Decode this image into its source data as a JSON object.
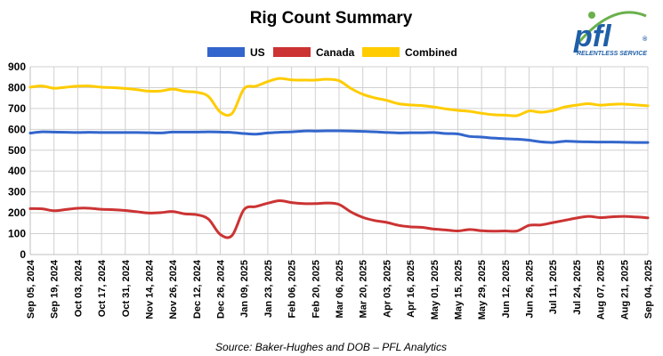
{
  "logo": {
    "text": "pfl",
    "tagline": "RELENTLESS SERVICE",
    "tm": "®"
  },
  "source": "Source: Baker-Hughes and DOB – PFL Analytics",
  "chart_data": {
    "type": "line",
    "title": "Rig Count Summary",
    "xlabel": "",
    "ylabel": "",
    "ylim": [
      0,
      900
    ],
    "yticks": [
      0,
      100,
      200,
      300,
      400,
      500,
      600,
      700,
      800,
      900
    ],
    "grid": true,
    "legend_position": "top-center",
    "x": [
      "Sep 05, 2024",
      "Sep 12, 2024",
      "Sep 19, 2024",
      "Sep 26, 2024",
      "Oct 03, 2024",
      "Oct 10, 2024",
      "Oct 17, 2024",
      "Oct 24, 2024",
      "Oct 31, 2024",
      "Nov 07, 2024",
      "Nov 14, 2024",
      "Nov 21, 2024",
      "Nov 26, 2024",
      "Dec 05, 2024",
      "Dec 12, 2024",
      "Dec 19, 2024",
      "Dec 26, 2024",
      "Jan 02, 2025",
      "Jan 09, 2025",
      "Jan 16, 2025",
      "Jan 23, 2025",
      "Jan 30, 2025",
      "Feb 06, 2025",
      "Feb 13, 2025",
      "Feb 20, 2025",
      "Feb 27, 2025",
      "Mar 06, 2025",
      "Mar 13, 2025",
      "Mar 20, 2025",
      "Mar 27, 2025",
      "Apr 03, 2025",
      "Apr 10, 2025",
      "Apr 16, 2025",
      "Apr 24, 2025",
      "May 01, 2025",
      "May 08, 2025",
      "May 15, 2025",
      "May 22, 2025",
      "May 29, 2025",
      "Jun 05, 2025",
      "Jun 12, 2025",
      "Jun 19, 2025",
      "Jun 26, 2025",
      "Jul 03, 2025",
      "Jul 11, 2025",
      "Jul 17, 2025",
      "Jul 24, 2025",
      "Jul 31, 2025",
      "Aug 07, 2025",
      "Aug 14, 2025",
      "Aug 21, 2025",
      "Aug 28, 2025",
      "Sep 04, 2025"
    ],
    "xtick_labels": [
      "Sep 05, 2024",
      "Sep 19, 2024",
      "Oct 03, 2024",
      "Oct 17, 2024",
      "Oct 31, 2024",
      "Nov 14, 2024",
      "Nov 26, 2024",
      "Dec 12, 2024",
      "Dec 26, 2024",
      "Jan 09, 2025",
      "Jan 23, 2025",
      "Feb 06, 2025",
      "Feb 20, 2025",
      "Mar 06, 2025",
      "Mar 20, 2025",
      "Apr 03, 2025",
      "Apr 16, 2025",
      "May 01, 2025",
      "May 15, 2025",
      "May 29, 2025",
      "Jun 12, 2025",
      "Jun 26, 2025",
      "Jul 11, 2025",
      "Jul 24, 2025",
      "Aug 07, 2025",
      "Aug 21, 2025",
      "Sep 04, 2025"
    ],
    "series": [
      {
        "name": "US",
        "color": "#3366cc",
        "values": [
          582,
          588,
          587,
          586,
          585,
          586,
          585,
          585,
          585,
          585,
          584,
          583,
          587,
          587,
          587,
          588,
          587,
          585,
          580,
          577,
          583,
          586,
          588,
          592,
          592,
          593,
          593,
          592,
          590,
          588,
          585,
          583,
          584,
          584,
          585,
          580,
          578,
          566,
          563,
          558,
          555,
          553,
          548,
          540,
          537,
          543,
          541,
          540,
          539,
          539,
          538,
          537,
          537
        ]
      },
      {
        "name": "Canada",
        "color": "#cc3333",
        "values": [
          220,
          219,
          210,
          216,
          222,
          222,
          217,
          215,
          211,
          205,
          199,
          201,
          206,
          195,
          191,
          170,
          96,
          92,
          215,
          230,
          246,
          258,
          249,
          244,
          244,
          247,
          240,
          204,
          178,
          163,
          154,
          140,
          133,
          130,
          122,
          118,
          113,
          120,
          114,
          112,
          113,
          113,
          140,
          142,
          153,
          164,
          175,
          183,
          177,
          181,
          183,
          180,
          176
        ]
      },
      {
        "name": "Combined",
        "color": "#ffcc00",
        "values": [
          802,
          808,
          797,
          802,
          807,
          808,
          802,
          800,
          796,
          790,
          783,
          784,
          793,
          782,
          778,
          758,
          683,
          677,
          795,
          807,
          829,
          844,
          837,
          836,
          836,
          840,
          833,
          796,
          768,
          751,
          739,
          723,
          717,
          714,
          707,
          698,
          691,
          686,
          677,
          670,
          668,
          666,
          688,
          682,
          690,
          707,
          716,
          723,
          716,
          720,
          721,
          717,
          713
        ]
      }
    ]
  }
}
